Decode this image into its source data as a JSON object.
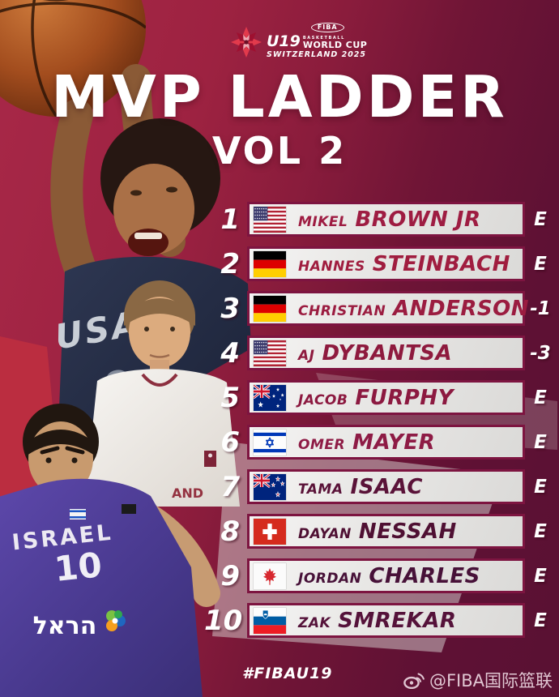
{
  "logo": {
    "fiba": "FIBA",
    "u19": "U19",
    "basketball": "BASKETBALL",
    "world_cup": "WORLD CUP",
    "edition": "SWITZERLAND 2025"
  },
  "title": {
    "main": "MVP LADDER",
    "sub": "VOL 2"
  },
  "ladder": {
    "rows": [
      {
        "rank": "1",
        "flag": "us",
        "country": "united-states",
        "first": "MIKEL",
        "last": "BROWN JR",
        "change": "E",
        "name_color": "#9e1c42"
      },
      {
        "rank": "2",
        "flag": "de",
        "country": "germany",
        "first": "HANNES",
        "last": "STEINBACH",
        "change": "E",
        "name_color": "#a01d3f"
      },
      {
        "rank": "3",
        "flag": "de",
        "country": "germany",
        "first": "CHRISTIAN",
        "last": "ANDERSON",
        "change": "-1",
        "name_color": "#9b1c40"
      },
      {
        "rank": "4",
        "flag": "us",
        "country": "united-states",
        "first": "AJ",
        "last": "DYBANTSA",
        "change": "-3",
        "name_color": "#8e1a3e"
      },
      {
        "rank": "5",
        "flag": "au",
        "country": "australia",
        "first": "JACOB",
        "last": "FURPHY",
        "change": "E",
        "name_color": "#8c1940"
      },
      {
        "rank": "6",
        "flag": "il",
        "country": "israel",
        "first": "OMER",
        "last": "MAYER",
        "change": "E",
        "name_color": "#8e1b45"
      },
      {
        "rank": "7",
        "flag": "nz",
        "country": "new-zealand",
        "first": "TAMA",
        "last": "ISAAC",
        "change": "E",
        "name_color": "#5a1238"
      },
      {
        "rank": "8",
        "flag": "ch",
        "country": "switzerland",
        "first": "DAYAN",
        "last": "NESSAH",
        "change": "E",
        "name_color": "#4f1033"
      },
      {
        "rank": "9",
        "flag": "ca",
        "country": "canada",
        "first": "JORDAN",
        "last": "CHARLES",
        "change": "E",
        "name_color": "#471138"
      },
      {
        "rank": "10",
        "flag": "si",
        "country": "slovenia",
        "first": "ZAK",
        "last": "SMREKAR",
        "change": "E",
        "name_color": "#55123a"
      }
    ]
  },
  "photos": {
    "usa_jersey": "USA",
    "usa_number": "0",
    "germany_jersey": "AND",
    "israel_jersey": "ISRAEL",
    "israel_number": "10",
    "israel_sponsor": "הראל"
  },
  "footer": {
    "hashtag": "#FIBAU19",
    "watermark": "@FIBA国际篮联"
  },
  "colors": {
    "accent_maroon": "#7d1440",
    "row_bg": "#e9e8e6",
    "bg_dark": "#5d1134",
    "bg_bright": "#a22443"
  }
}
